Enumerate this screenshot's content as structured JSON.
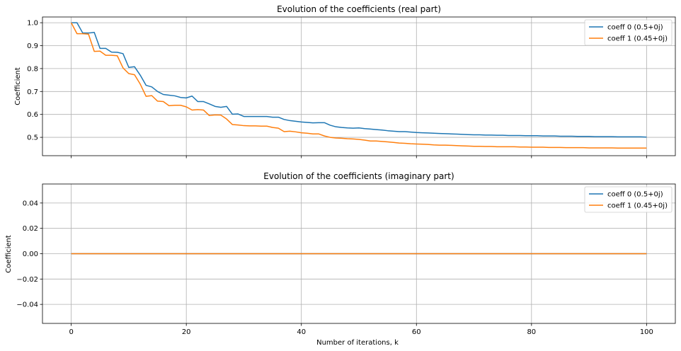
{
  "chart_data": [
    {
      "type": "line",
      "title": "Evolution of the coefficients (real part)",
      "xlabel": "",
      "ylabel": "Coefficient",
      "xlim": [
        -5,
        105
      ],
      "ylim": [
        0.42,
        1.025
      ],
      "xticks": [
        0,
        20,
        40,
        60,
        80,
        100
      ],
      "xtick_labels_visible": false,
      "yticks": [
        0.5,
        0.6,
        0.7,
        0.8,
        0.9,
        1.0
      ],
      "ytick_labels": [
        "0.5",
        "0.6",
        "0.7",
        "0.8",
        "0.9",
        "1.0"
      ],
      "grid": true,
      "legend_position": "top-right",
      "series": [
        {
          "name": "coeff 0 (0.5+0j)",
          "color": "#1f77b4",
          "x": [
            0,
            1,
            2,
            3,
            4,
            5,
            6,
            7,
            8,
            9,
            10,
            11,
            12,
            13,
            14,
            15,
            16,
            17,
            18,
            19,
            20,
            21,
            22,
            23,
            24,
            25,
            26,
            27,
            28,
            29,
            30,
            31,
            32,
            33,
            34,
            35,
            36,
            37,
            38,
            39,
            40,
            41,
            42,
            43,
            44,
            45,
            46,
            47,
            48,
            49,
            50,
            51,
            52,
            53,
            54,
            55,
            56,
            57,
            58,
            59,
            60,
            61,
            62,
            63,
            64,
            65,
            66,
            67,
            68,
            69,
            70,
            71,
            72,
            73,
            74,
            75,
            76,
            77,
            78,
            79,
            80,
            81,
            82,
            83,
            84,
            85,
            86,
            87,
            88,
            89,
            90,
            91,
            92,
            93,
            94,
            95,
            96,
            97,
            98,
            99,
            100
          ],
          "values": [
            1.0,
            1.0,
            0.955,
            0.955,
            0.958,
            0.888,
            0.888,
            0.872,
            0.871,
            0.865,
            0.805,
            0.808,
            0.771,
            0.727,
            0.72,
            0.7,
            0.687,
            0.684,
            0.681,
            0.674,
            0.672,
            0.68,
            0.656,
            0.656,
            0.646,
            0.635,
            0.631,
            0.635,
            0.601,
            0.602,
            0.591,
            0.591,
            0.591,
            0.591,
            0.591,
            0.588,
            0.588,
            0.578,
            0.573,
            0.57,
            0.567,
            0.565,
            0.563,
            0.564,
            0.564,
            0.553,
            0.546,
            0.543,
            0.541,
            0.54,
            0.541,
            0.538,
            0.536,
            0.534,
            0.532,
            0.529,
            0.527,
            0.525,
            0.525,
            0.523,
            0.521,
            0.52,
            0.519,
            0.518,
            0.517,
            0.516,
            0.515,
            0.514,
            0.513,
            0.512,
            0.511,
            0.511,
            0.51,
            0.51,
            0.509,
            0.509,
            0.508,
            0.508,
            0.508,
            0.507,
            0.507,
            0.507,
            0.506,
            0.506,
            0.506,
            0.505,
            0.505,
            0.505,
            0.504,
            0.504,
            0.504,
            0.503,
            0.503,
            0.503,
            0.503,
            0.502,
            0.502,
            0.502,
            0.502,
            0.502,
            0.501
          ]
        },
        {
          "name": "coeff 1 (0.45+0j)",
          "color": "#ff7f0e",
          "x": [
            0,
            1,
            2,
            3,
            4,
            5,
            6,
            7,
            8,
            9,
            10,
            11,
            12,
            13,
            14,
            15,
            16,
            17,
            18,
            19,
            20,
            21,
            22,
            23,
            24,
            25,
            26,
            27,
            28,
            29,
            30,
            31,
            32,
            33,
            34,
            35,
            36,
            37,
            38,
            39,
            40,
            41,
            42,
            43,
            44,
            45,
            46,
            47,
            48,
            49,
            50,
            51,
            52,
            53,
            54,
            55,
            56,
            57,
            58,
            59,
            60,
            61,
            62,
            63,
            64,
            65,
            66,
            67,
            68,
            69,
            70,
            71,
            72,
            73,
            74,
            75,
            76,
            77,
            78,
            79,
            80,
            81,
            82,
            83,
            84,
            85,
            86,
            87,
            88,
            89,
            90,
            91,
            92,
            93,
            94,
            95,
            96,
            97,
            98,
            99,
            100
          ],
          "values": [
            1.0,
            0.952,
            0.952,
            0.95,
            0.875,
            0.876,
            0.858,
            0.858,
            0.856,
            0.803,
            0.778,
            0.773,
            0.732,
            0.679,
            0.682,
            0.658,
            0.656,
            0.638,
            0.64,
            0.64,
            0.633,
            0.619,
            0.621,
            0.619,
            0.595,
            0.598,
            0.597,
            0.58,
            0.556,
            0.554,
            0.551,
            0.55,
            0.55,
            0.549,
            0.549,
            0.543,
            0.54,
            0.525,
            0.527,
            0.524,
            0.52,
            0.518,
            0.515,
            0.515,
            0.506,
            0.5,
            0.497,
            0.496,
            0.494,
            0.493,
            0.491,
            0.488,
            0.484,
            0.484,
            0.482,
            0.48,
            0.478,
            0.475,
            0.474,
            0.472,
            0.471,
            0.47,
            0.469,
            0.467,
            0.466,
            0.466,
            0.465,
            0.464,
            0.463,
            0.462,
            0.461,
            0.461,
            0.46,
            0.46,
            0.459,
            0.459,
            0.459,
            0.459,
            0.458,
            0.458,
            0.457,
            0.457,
            0.457,
            0.456,
            0.456,
            0.456,
            0.455,
            0.455,
            0.455,
            0.455,
            0.454,
            0.454,
            0.454,
            0.454,
            0.454,
            0.453,
            0.453,
            0.453,
            0.453,
            0.453,
            0.453
          ]
        }
      ]
    },
    {
      "type": "line",
      "title": "Evolution of the coefficients (imaginary part)",
      "xlabel": "Number of iterations, k",
      "ylabel": "Coefficient",
      "xlim": [
        -5,
        105
      ],
      "ylim": [
        -0.055,
        0.055
      ],
      "xticks": [
        0,
        20,
        40,
        60,
        80,
        100
      ],
      "xtick_labels": [
        "0",
        "20",
        "40",
        "60",
        "80",
        "100"
      ],
      "yticks": [
        -0.04,
        -0.02,
        0.0,
        0.02,
        0.04
      ],
      "ytick_labels": [
        "−0.04",
        "−0.02",
        "0.00",
        "0.02",
        "0.04"
      ],
      "grid": true,
      "legend_position": "top-right",
      "series": [
        {
          "name": "coeff 0 (0.5+0j)",
          "color": "#1f77b4",
          "x": [
            0,
            100
          ],
          "values": [
            0.0,
            0.0
          ]
        },
        {
          "name": "coeff 1 (0.45+0j)",
          "color": "#ff7f0e",
          "x": [
            0,
            100
          ],
          "values": [
            0.0,
            0.0
          ]
        }
      ]
    }
  ]
}
